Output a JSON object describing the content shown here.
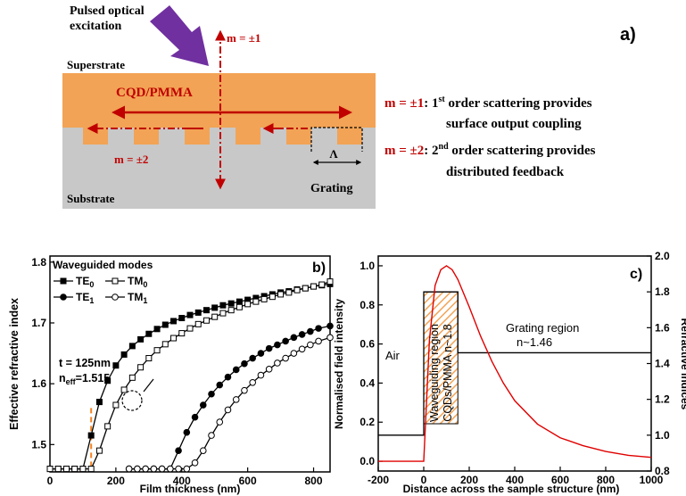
{
  "panel_a": {
    "label": "a)",
    "excitation": [
      "Pulsed optical",
      "excitation"
    ],
    "superstrate": "Superstrate",
    "cqd": "CQD/PMMA",
    "substrate": "Substrate",
    "grating": "Grating",
    "period": "Λ",
    "m1": "m = ±1",
    "m2": "m = ±2",
    "desc1_key": "m = ±1",
    "desc1_a": ": 1",
    "desc1_sup": "st",
    "desc1_b": " order scattering provides",
    "desc1_line2": "surface output coupling",
    "desc2_key": "m = ±2",
    "desc2_a": ": 2",
    "desc2_sup": "nd",
    "desc2_b": " order scattering provides",
    "desc2_line2": "distributed feedback",
    "colors": {
      "orange": "#F2A355",
      "gray": "#C8C8C8",
      "red": "#C00000",
      "purple": "#7030A0"
    }
  },
  "chart_data": [
    {
      "type": "line",
      "label": "b)",
      "xlabel": "Film thickness (nm)",
      "ylabel": "Effective refractive index",
      "xlim": [
        0,
        850
      ],
      "ylim": [
        1.455,
        1.81
      ],
      "xticks": [
        0,
        200,
        400,
        600,
        800
      ],
      "yticks": [
        1.5,
        1.6,
        1.7,
        1.8
      ],
      "legend_title": "Waveguided modes",
      "legend": [
        {
          "base": "TE",
          "sub": "0"
        },
        {
          "base": "TM",
          "sub": "0"
        },
        {
          "base": "TE",
          "sub": "1"
        },
        {
          "base": "TM",
          "sub": "1"
        }
      ],
      "annotation": {
        "t": "t = 125nm",
        "neff_base": "n",
        "neff_sub": "eff",
        "neff_rest": "=1.515"
      },
      "marker_line_x": 125,
      "series": [
        {
          "name": "TE0",
          "marker": "filled-square",
          "x": [
            0,
            25,
            50,
            75,
            100,
            125,
            150,
            175,
            200,
            225,
            250,
            275,
            300,
            325,
            350,
            375,
            400,
            425,
            450,
            475,
            500,
            525,
            550,
            575,
            600,
            625,
            650,
            675,
            700,
            725,
            750,
            775,
            800,
            825,
            850
          ],
          "y": [
            1.46,
            1.46,
            1.46,
            1.46,
            1.46,
            1.515,
            1.57,
            1.605,
            1.63,
            1.648,
            1.662,
            1.673,
            1.682,
            1.69,
            1.697,
            1.703,
            1.708,
            1.713,
            1.717,
            1.721,
            1.725,
            1.729,
            1.732,
            1.735,
            1.738,
            1.741,
            1.744,
            1.747,
            1.75,
            1.752,
            1.755,
            1.757,
            1.76,
            1.762,
            1.764
          ]
        },
        {
          "name": "TM0",
          "marker": "open-square",
          "x": [
            0,
            25,
            50,
            75,
            100,
            125,
            150,
            175,
            200,
            225,
            250,
            275,
            300,
            325,
            350,
            375,
            400,
            425,
            450,
            475,
            500,
            525,
            550,
            575,
            600,
            625,
            650,
            675,
            700,
            725,
            750,
            775,
            800,
            825,
            850
          ],
          "y": [
            1.46,
            1.46,
            1.46,
            1.46,
            1.46,
            1.46,
            1.49,
            1.53,
            1.565,
            1.59,
            1.61,
            1.627,
            1.642,
            1.655,
            1.665,
            1.675,
            1.683,
            1.691,
            1.698,
            1.704,
            1.71,
            1.716,
            1.721,
            1.726,
            1.731,
            1.735,
            1.739,
            1.743,
            1.747,
            1.75,
            1.754,
            1.757,
            1.76,
            1.763,
            1.768
          ]
        },
        {
          "name": "TE1",
          "marker": "filled-circle",
          "x": [
            240,
            265,
            290,
            315,
            340,
            365,
            390,
            415,
            440,
            465,
            490,
            515,
            540,
            565,
            590,
            615,
            640,
            665,
            690,
            715,
            740,
            765,
            790,
            815,
            850
          ],
          "y": [
            1.46,
            1.46,
            1.46,
            1.46,
            1.46,
            1.46,
            1.49,
            1.52,
            1.545,
            1.565,
            1.583,
            1.598,
            1.611,
            1.623,
            1.633,
            1.642,
            1.65,
            1.658,
            1.664,
            1.67,
            1.676,
            1.681,
            1.686,
            1.691,
            1.695
          ]
        },
        {
          "name": "TM1",
          "marker": "open-circle",
          "x": [
            240,
            265,
            290,
            315,
            340,
            365,
            390,
            415,
            440,
            465,
            490,
            515,
            540,
            565,
            590,
            615,
            640,
            665,
            690,
            715,
            740,
            765,
            790,
            815,
            850
          ],
          "y": [
            1.46,
            1.46,
            1.46,
            1.46,
            1.46,
            1.46,
            1.46,
            1.46,
            1.47,
            1.49,
            1.515,
            1.537,
            1.557,
            1.574,
            1.589,
            1.602,
            1.614,
            1.624,
            1.634,
            1.642,
            1.65,
            1.657,
            1.664,
            1.67,
            1.676
          ]
        }
      ]
    },
    {
      "type": "line",
      "label": "c)",
      "xlabel": "Distance across the sample structure (nm)",
      "ylabel": "Normalised field intensity",
      "y2label": "Refractive indices",
      "xlim": [
        -200,
        1000
      ],
      "ylim": [
        -0.05,
        1.05
      ],
      "y2lim": [
        0.8,
        2.0
      ],
      "xticks": [
        -200,
        0,
        200,
        400,
        600,
        800,
        1000
      ],
      "yticks": [
        0.0,
        0.2,
        0.4,
        0.6,
        0.8,
        1.0
      ],
      "y2ticks": [
        0.8,
        1.0,
        1.2,
        1.4,
        1.6,
        1.8,
        2.0
      ],
      "region_labels": {
        "air": "Air",
        "guide1": "Waveguiding region",
        "guide2": "CQDs/PMMA n~1.8",
        "grating1": "Grating region",
        "grating2": "n~1.46"
      },
      "field_intensity": {
        "x": [
          -200,
          -150,
          -100,
          -50,
          0,
          25,
          50,
          75,
          100,
          125,
          150,
          175,
          200,
          250,
          300,
          350,
          400,
          500,
          600,
          700,
          800,
          900,
          1000
        ],
        "y": [
          0.0,
          0.0,
          0.0,
          0.0,
          0.0,
          0.62,
          0.9,
          0.98,
          1.0,
          0.98,
          0.93,
          0.86,
          0.79,
          0.64,
          0.51,
          0.4,
          0.31,
          0.19,
          0.12,
          0.08,
          0.05,
          0.03,
          0.02
        ]
      },
      "refractive_index": {
        "x": [
          -200,
          0,
          0,
          150,
          150,
          1000
        ],
        "y": [
          1.0,
          1.0,
          1.8,
          1.8,
          1.46,
          1.46
        ]
      }
    }
  ]
}
